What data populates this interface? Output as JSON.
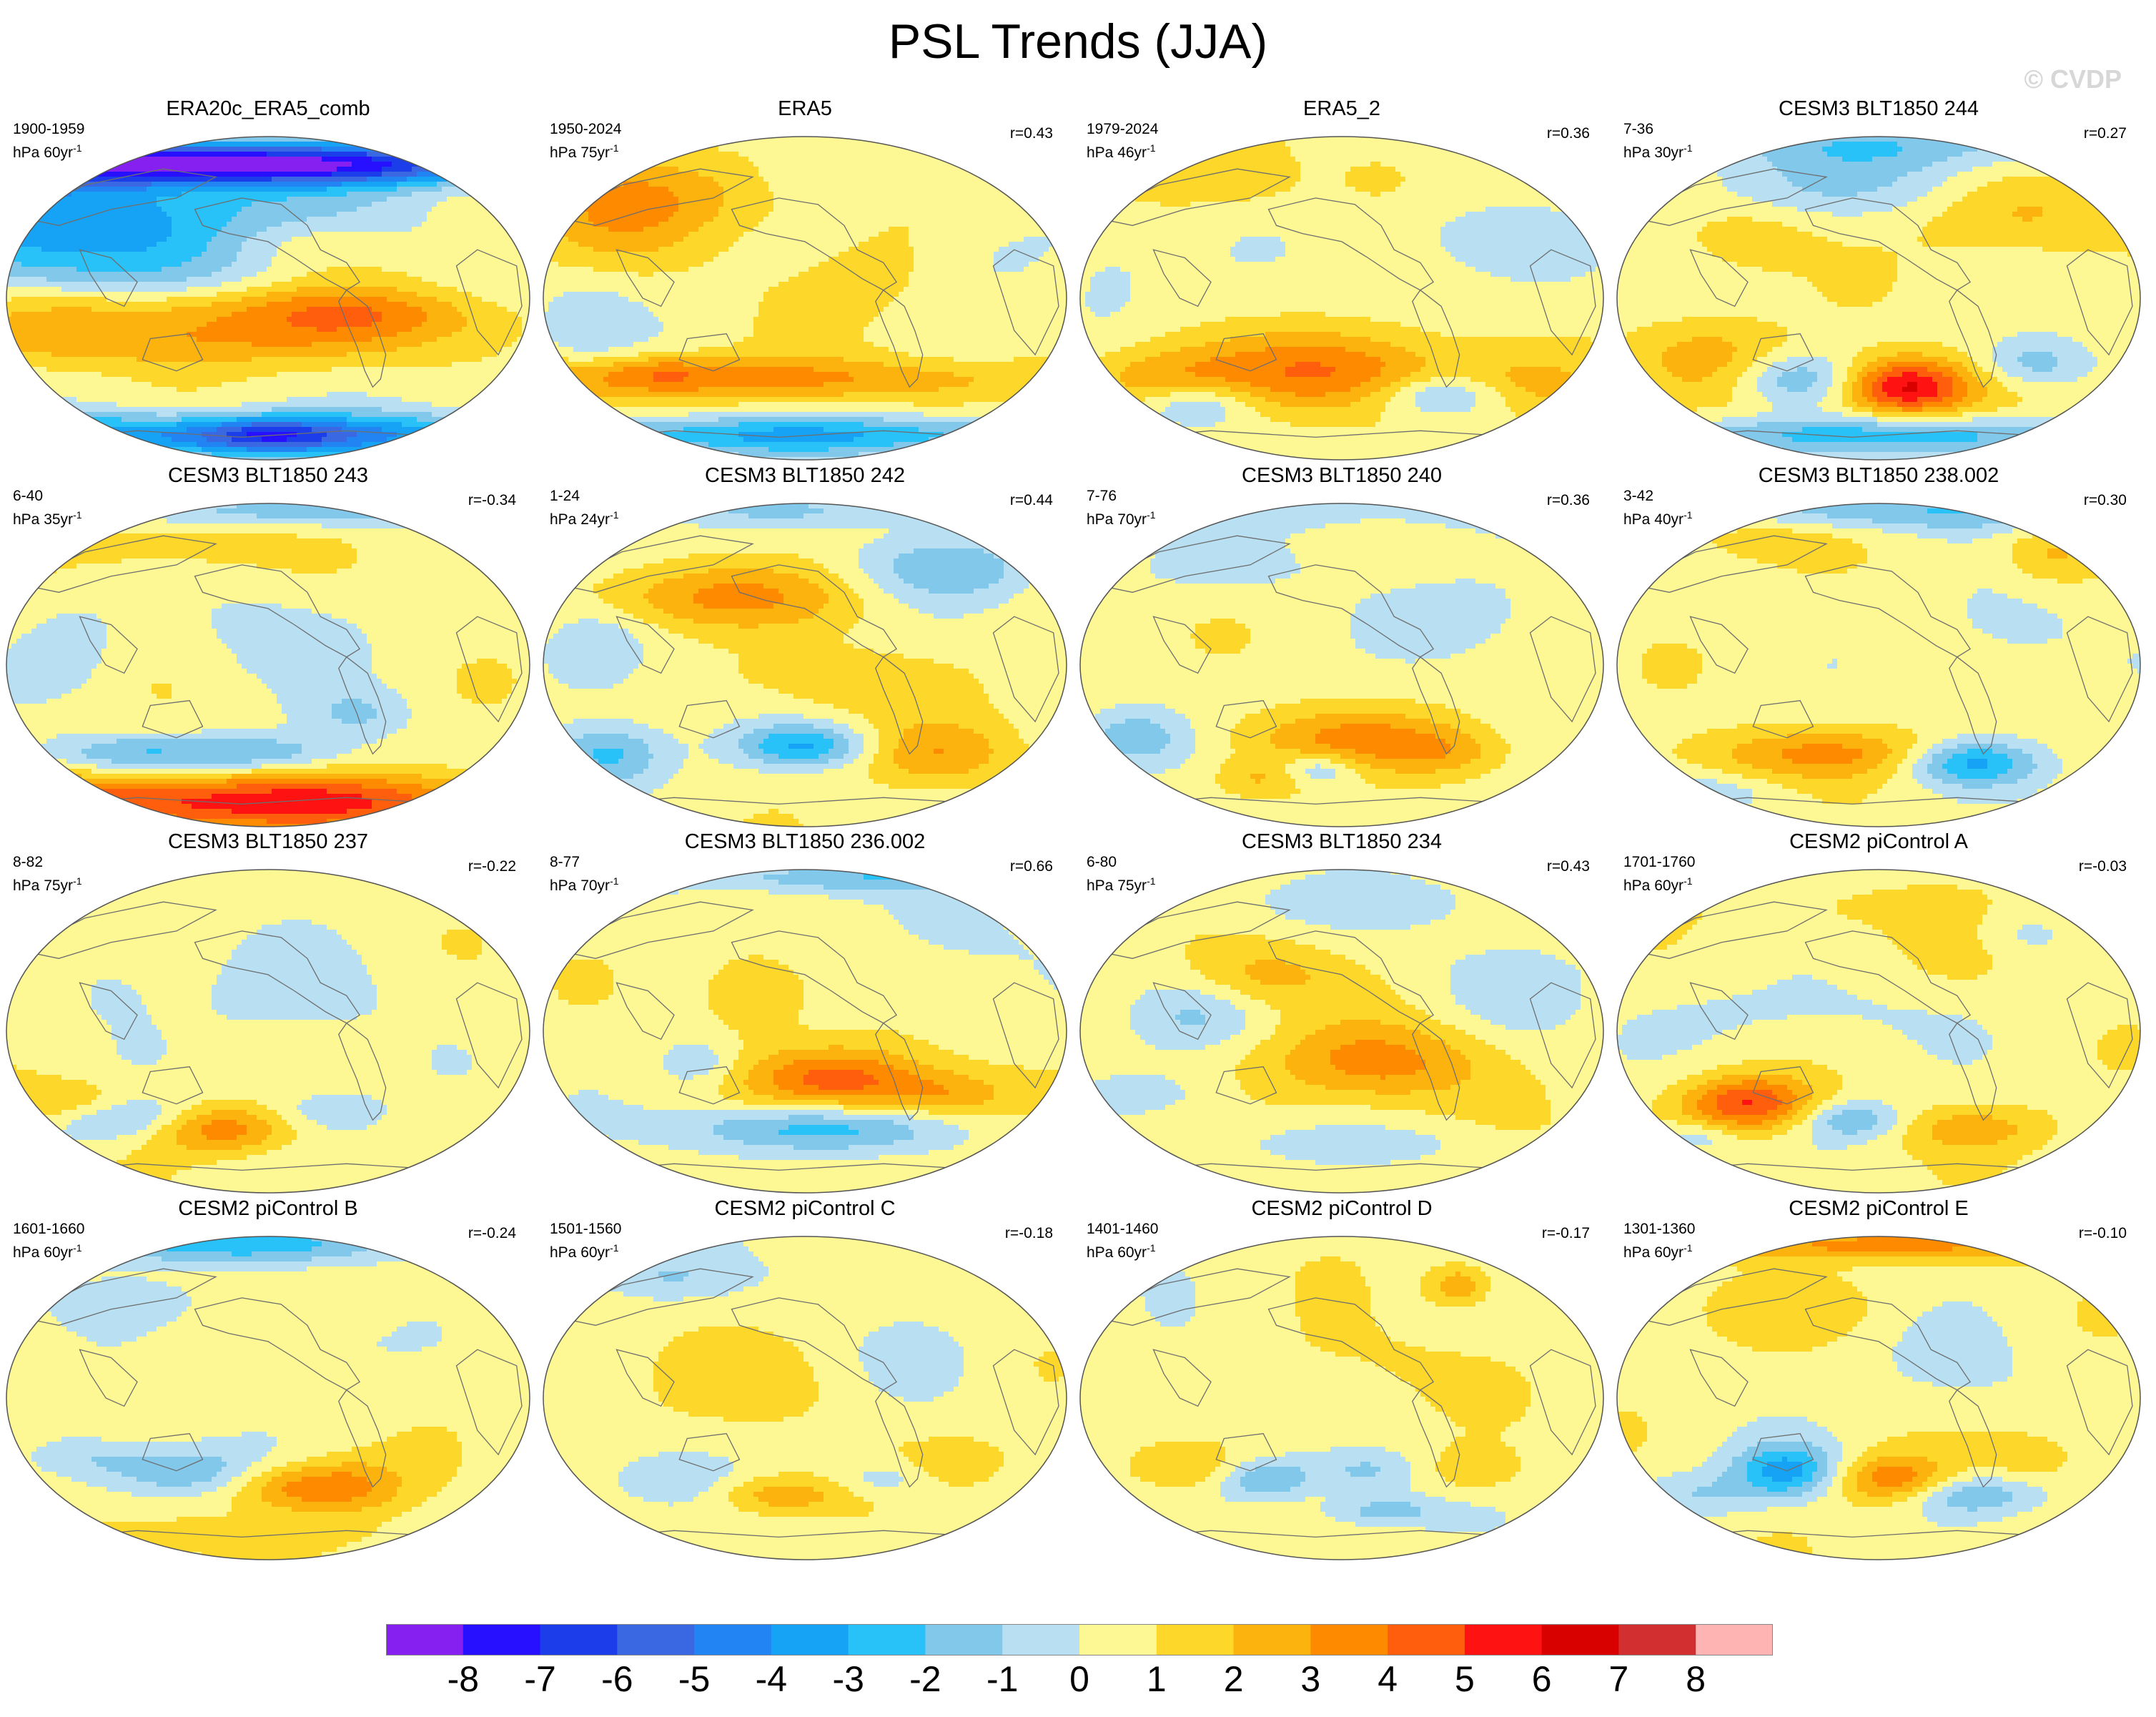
{
  "title": "PSL Trends (JJA)",
  "watermark": "© CVDP",
  "panels": [
    {
      "title": "ERA20c_ERA5_comb",
      "period": "1900-1959",
      "units": "hPa 60yr",
      "r": "",
      "pattern": [
        [
          -0.35,
          0.85,
          1.3,
          0.14,
          -4
        ],
        [
          -0.1,
          0.82,
          1.4,
          0.12,
          -5
        ],
        [
          -0.55,
          0.58,
          0.9,
          0.3,
          -2.5
        ],
        [
          -0.75,
          0.3,
          0.8,
          0.35,
          -2.8
        ],
        [
          -0.35,
          -0.25,
          1.0,
          0.18,
          2.5
        ],
        [
          -0.45,
          -0.05,
          0.8,
          0.14,
          1.5
        ],
        [
          0.45,
          -0.1,
          0.5,
          0.15,
          1.6
        ],
        [
          0.15,
          0.0,
          0.5,
          0.25,
          0.8
        ],
        [
          -0.1,
          -0.85,
          1.4,
          0.14,
          -5
        ],
        [
          0.0,
          -0.85,
          0.25,
          0.1,
          -3
        ],
        [
          0.1,
          0.35,
          0.3,
          0.15,
          1.2
        ]
      ]
    },
    {
      "title": "ERA5",
      "period": "1950-2024",
      "units": "hPa 75yr",
      "r": "r=0.43",
      "pattern": [
        [
          -0.75,
          0.5,
          0.35,
          0.35,
          1.8
        ],
        [
          -0.35,
          0.65,
          0.55,
          0.25,
          1.3
        ],
        [
          -0.4,
          -0.5,
          1.4,
          0.14,
          2.8
        ],
        [
          -0.55,
          -0.45,
          0.2,
          0.1,
          1.2
        ],
        [
          0.0,
          -0.85,
          1.4,
          0.12,
          -3.5
        ],
        [
          0.3,
          0.15,
          0.4,
          0.35,
          0.8
        ],
        [
          -0.85,
          -0.15,
          0.2,
          0.3,
          -1.2
        ],
        [
          0.7,
          0.3,
          0.3,
          0.3,
          -1
        ],
        [
          0.1,
          0.75,
          0.3,
          0.2,
          -0.8
        ]
      ]
    },
    {
      "title": "ERA5_2",
      "period": "1979-2024",
      "units": "hPa 46yr",
      "r": "r=0.36",
      "pattern": [
        [
          0.0,
          -0.45,
          0.45,
          0.25,
          3.5
        ],
        [
          -0.55,
          -0.65,
          0.22,
          0.14,
          -2.5
        ],
        [
          -0.7,
          -0.5,
          0.35,
          0.2,
          2.3
        ],
        [
          0.4,
          -0.6,
          0.25,
          0.13,
          -2.5
        ],
        [
          0.7,
          -0.55,
          0.3,
          0.18,
          1.5
        ],
        [
          -0.5,
          0.7,
          0.4,
          0.18,
          0.9
        ],
        [
          0.4,
          0.35,
          0.45,
          0.3,
          -1
        ],
        [
          0.15,
          0.75,
          0.15,
          0.15,
          1
        ],
        [
          -0.9,
          0.15,
          0.2,
          0.3,
          -1
        ]
      ]
    },
    {
      "title": "CESM3 BLT1850 244",
      "period": "7-36",
      "units": "hPa 30yr",
      "r": "r=0.27",
      "pattern": [
        [
          0.1,
          -0.55,
          0.25,
          0.18,
          6
        ],
        [
          0.15,
          -0.85,
          1.3,
          0.12,
          -3
        ],
        [
          -0.3,
          -0.5,
          0.25,
          0.15,
          -2.5
        ],
        [
          0.6,
          -0.4,
          0.2,
          0.15,
          -2.2
        ],
        [
          -0.65,
          -0.35,
          0.3,
          0.25,
          1.8
        ],
        [
          -0.2,
          0.7,
          0.6,
          0.2,
          -1.4
        ],
        [
          0.55,
          0.5,
          0.4,
          0.25,
          1.5
        ],
        [
          0.1,
          0.95,
          1.0,
          0.15,
          -2
        ],
        [
          -0.5,
          0.35,
          0.25,
          0.2,
          1.3
        ]
      ]
    },
    {
      "title": "CESM3 BLT1850 243",
      "period": "6-40",
      "units": "hPa 35yr",
      "r": "r=-0.34",
      "pattern": [
        [
          -0.2,
          -0.85,
          1.4,
          0.18,
          5
        ],
        [
          -0.5,
          -0.55,
          0.35,
          0.12,
          -2.5
        ],
        [
          0.0,
          -0.55,
          0.3,
          0.12,
          -2.2
        ],
        [
          0.35,
          -0.3,
          0.2,
          0.15,
          -1.5
        ],
        [
          -0.4,
          0.75,
          0.45,
          0.2,
          1.3
        ],
        [
          0.2,
          0.95,
          1.0,
          0.1,
          -2.2
        ],
        [
          0.05,
          0.2,
          0.35,
          0.3,
          -1
        ],
        [
          -0.75,
          0.1,
          0.2,
          0.3,
          -1
        ]
      ]
    },
    {
      "title": "CESM3 BLT1850 242",
      "period": "1-24",
      "units": "hPa 24yr",
      "r": "r=0.44",
      "pattern": [
        [
          -0.35,
          0.42,
          0.55,
          0.2,
          2.5
        ],
        [
          0.0,
          -0.5,
          0.25,
          0.13,
          -3.5
        ],
        [
          -0.75,
          -0.55,
          0.22,
          0.2,
          -3
        ],
        [
          0.5,
          -0.55,
          0.3,
          0.2,
          2.2
        ],
        [
          0.55,
          0.6,
          0.35,
          0.2,
          -2.2
        ],
        [
          -0.8,
          0.05,
          0.2,
          0.3,
          -1.5
        ],
        [
          -0.1,
          0.95,
          0.8,
          0.1,
          -1.4
        ],
        [
          0.1,
          -0.1,
          0.45,
          0.2,
          1.2
        ]
      ]
    },
    {
      "title": "CESM3 BLT1850 240",
      "period": "7-76",
      "units": "hPa 70yr",
      "r": "r=0.36",
      "pattern": [
        [
          0.0,
          -0.45,
          0.45,
          0.18,
          2.5
        ],
        [
          -0.3,
          -0.7,
          0.2,
          0.12,
          1.8
        ],
        [
          0.4,
          -0.55,
          0.25,
          0.15,
          1.5
        ],
        [
          -0.8,
          -0.45,
          0.2,
          0.18,
          -2.5
        ],
        [
          -0.1,
          -0.65,
          0.15,
          0.1,
          -2.2
        ],
        [
          0.55,
          0.3,
          0.35,
          0.3,
          -1
        ],
        [
          -0.45,
          0.6,
          0.4,
          0.2,
          -0.9
        ],
        [
          0.15,
          0.95,
          0.9,
          0.12,
          -1.3
        ]
      ]
    },
    {
      "title": "CESM3 BLT1850 238.002",
      "period": "3-42",
      "units": "hPa 40yr",
      "r": "r=0.30",
      "pattern": [
        [
          -0.2,
          -0.55,
          0.55,
          0.15,
          2.5
        ],
        [
          0.35,
          -0.6,
          0.25,
          0.14,
          -4
        ],
        [
          0.1,
          0.95,
          0.9,
          0.12,
          -2.5
        ],
        [
          0.65,
          0.7,
          0.2,
          0.2,
          1.8
        ],
        [
          -0.5,
          0.8,
          0.3,
          0.15,
          1.2
        ],
        [
          -0.7,
          -0.8,
          0.3,
          0.1,
          -1.2
        ],
        [
          0.5,
          0.2,
          0.3,
          0.3,
          -1
        ]
      ]
    },
    {
      "title": "CESM3 BLT1850 237",
      "period": "8-82",
      "units": "hPa 75yr",
      "r": "r=-0.22",
      "pattern": [
        [
          -0.2,
          -0.6,
          0.3,
          0.15,
          3.5
        ],
        [
          -0.55,
          -0.55,
          0.3,
          0.14,
          -2.8
        ],
        [
          -0.75,
          -0.45,
          0.25,
          0.15,
          2
        ],
        [
          0.2,
          -0.5,
          0.25,
          0.15,
          -1.5
        ],
        [
          0.1,
          0.2,
          0.45,
          0.35,
          -0.9
        ],
        [
          -0.6,
          0.3,
          0.2,
          0.25,
          -0.8
        ]
      ]
    },
    {
      "title": "CESM3 BLT1850 236.002",
      "period": "8-77",
      "units": "hPa 70yr",
      "r": "r=0.66",
      "pattern": [
        [
          0.15,
          -0.3,
          0.35,
          0.2,
          4
        ],
        [
          -0.2,
          0.25,
          0.2,
          0.25,
          1.8
        ],
        [
          0.0,
          -0.6,
          0.5,
          0.15,
          -3.2
        ],
        [
          0.55,
          -0.4,
          0.25,
          0.15,
          2
        ],
        [
          -0.4,
          -0.2,
          0.15,
          0.15,
          -1.5
        ],
        [
          0.1,
          0.95,
          0.9,
          0.1,
          -2.2
        ],
        [
          0.55,
          0.6,
          0.3,
          0.25,
          -0.9
        ]
      ]
    },
    {
      "title": "CESM3 BLT1850 234",
      "period": "6-80",
      "units": "hPa 75yr",
      "r": "r=0.43",
      "pattern": [
        [
          0.15,
          -0.2,
          0.45,
          0.25,
          2.8
        ],
        [
          -0.3,
          0.35,
          0.3,
          0.2,
          1.8
        ],
        [
          -0.55,
          0.1,
          0.25,
          0.2,
          -1.3
        ],
        [
          -0.75,
          -0.4,
          0.25,
          0.15,
          -1.3
        ],
        [
          0.65,
          0.3,
          0.3,
          0.3,
          -1
        ],
        [
          0.0,
          -0.7,
          0.6,
          0.1,
          -1
        ],
        [
          0.1,
          0.8,
          0.6,
          0.15,
          -1
        ]
      ]
    },
    {
      "title": "CESM2 piControl A",
      "period": "1701-1760",
      "units": "hPa 60yr",
      "r": "r=-0.03",
      "pattern": [
        [
          -0.5,
          -0.45,
          0.25,
          0.17,
          4.5
        ],
        [
          -0.1,
          -0.55,
          0.2,
          0.12,
          -2.5
        ],
        [
          0.35,
          -0.6,
          0.3,
          0.14,
          1.8
        ],
        [
          -0.7,
          -0.65,
          0.15,
          0.1,
          -1.5
        ],
        [
          0.5,
          0.6,
          0.2,
          0.2,
          -1.5
        ],
        [
          -0.3,
          0.1,
          0.5,
          0.25,
          -0.9
        ],
        [
          0.0,
          0.75,
          0.6,
          0.15,
          0.9
        ],
        [
          0.35,
          0.5,
          0.25,
          0.2,
          1
        ]
      ]
    },
    {
      "title": "CESM2 piControl B",
      "period": "1601-1660",
      "units": "hPa 60yr",
      "r": "r=-0.24",
      "pattern": [
        [
          -0.2,
          0.95,
          0.8,
          0.12,
          -3
        ],
        [
          -0.35,
          -0.45,
          0.3,
          0.15,
          -2.5
        ],
        [
          0.1,
          -0.55,
          0.25,
          0.15,
          2.8
        ],
        [
          0.35,
          -0.55,
          0.2,
          0.18,
          1.8
        ],
        [
          -0.6,
          -0.85,
          0.9,
          0.1,
          1.5
        ],
        [
          -0.7,
          -0.35,
          0.2,
          0.15,
          -1.5
        ],
        [
          0.1,
          0.3,
          0.3,
          0.2,
          -0.9
        ],
        [
          -0.55,
          0.6,
          0.35,
          0.15,
          -0.9
        ]
      ]
    },
    {
      "title": "CESM2 piControl C",
      "period": "1501-1560",
      "units": "hPa 60yr",
      "r": "r=-0.18",
      "pattern": [
        [
          -0.1,
          -0.6,
          0.25,
          0.12,
          2.2
        ],
        [
          0.3,
          -0.5,
          0.2,
          0.12,
          -1.5
        ],
        [
          0.6,
          -0.4,
          0.2,
          0.15,
          1.5
        ],
        [
          -0.55,
          -0.5,
          0.25,
          0.15,
          -1.2
        ],
        [
          -0.55,
          0.75,
          0.3,
          0.14,
          -1.4
        ],
        [
          -0.1,
          0.1,
          0.5,
          0.3,
          0.8
        ],
        [
          0.45,
          0.2,
          0.3,
          0.3,
          -0.9
        ],
        [
          0.3,
          0.75,
          0.3,
          0.15,
          -0.8
        ]
      ]
    },
    {
      "title": "CESM2 piControl D",
      "period": "1401-1460",
      "units": "hPa 60yr",
      "r": "r=-0.17",
      "pattern": [
        [
          -0.3,
          -0.5,
          0.2,
          0.13,
          -3
        ],
        [
          0.15,
          -0.7,
          0.25,
          0.1,
          -2.2
        ],
        [
          0.45,
          0.7,
          0.12,
          0.13,
          2.5
        ],
        [
          0.1,
          -0.45,
          0.2,
          0.13,
          -1.8
        ],
        [
          -0.55,
          -0.45,
          0.25,
          0.15,
          1.8
        ],
        [
          0.5,
          -0.45,
          0.2,
          0.15,
          1.3
        ],
        [
          0.0,
          0.2,
          0.5,
          0.3,
          0.7
        ],
        [
          -0.6,
          0.2,
          0.3,
          0.35,
          -0.7
        ]
      ]
    },
    {
      "title": "CESM2 piControl E",
      "period": "1301-1360",
      "units": "hPa 60yr",
      "r": "r=-0.10",
      "pattern": [
        [
          -0.35,
          -0.45,
          0.2,
          0.17,
          -3.8
        ],
        [
          0.05,
          -0.5,
          0.22,
          0.15,
          3.2
        ],
        [
          0.35,
          -0.6,
          0.25,
          0.12,
          -2.5
        ],
        [
          0.0,
          0.95,
          0.9,
          0.1,
          2.8
        ],
        [
          -0.7,
          -0.6,
          0.25,
          0.15,
          -1.5
        ],
        [
          0.6,
          -0.35,
          0.2,
          0.15,
          1.2
        ],
        [
          -0.3,
          0.55,
          0.4,
          0.2,
          0.9
        ],
        [
          0.3,
          0.2,
          0.3,
          0.3,
          -0.9
        ]
      ]
    }
  ],
  "colorbar": {
    "labels": [
      "-8",
      "-7",
      "-6",
      "-5",
      "-4",
      "-3",
      "-2",
      "-1",
      "0",
      "1",
      "2",
      "3",
      "4",
      "5",
      "6",
      "7",
      "8"
    ],
    "colors": [
      "#8620f0",
      "#2710ff",
      "#1b3eea",
      "#3a67e2",
      "#2284f3",
      "#16a3f6",
      "#28c1f8",
      "#82c8ea",
      "#b8e0f2",
      "#fef894",
      "#fdd729",
      "#fdb30d",
      "#fe8a00",
      "#ff5f0d",
      "#ff1212",
      "#d90000",
      "#d23030",
      "#ffb4b4"
    ]
  }
}
